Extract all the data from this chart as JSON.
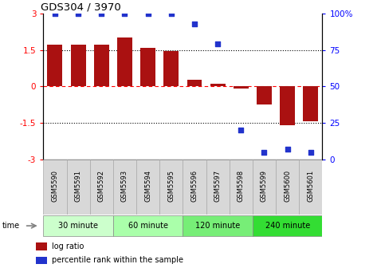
{
  "title": "GDS304 / 3970",
  "samples": [
    "GSM5590",
    "GSM5591",
    "GSM5592",
    "GSM5593",
    "GSM5594",
    "GSM5595",
    "GSM5596",
    "GSM5597",
    "GSM5598",
    "GSM5599",
    "GSM5600",
    "GSM5601"
  ],
  "log_ratio": [
    1.72,
    1.7,
    1.72,
    2.0,
    1.58,
    1.45,
    0.28,
    0.1,
    -0.1,
    -0.75,
    -1.58,
    -1.42
  ],
  "percentile": [
    100,
    100,
    100,
    100,
    100,
    100,
    93,
    79,
    20,
    5,
    7,
    5
  ],
  "bar_color": "#aa1111",
  "dot_color": "#2233cc",
  "groups": [
    {
      "label": "30 minute",
      "start": 0,
      "end": 3,
      "color": "#ccffcc"
    },
    {
      "label": "60 minute",
      "start": 3,
      "end": 6,
      "color": "#aaffaa"
    },
    {
      "label": "120 minute",
      "start": 6,
      "end": 9,
      "color": "#77ee77"
    },
    {
      "label": "240 minute",
      "start": 9,
      "end": 12,
      "color": "#33dd33"
    }
  ],
  "ylim": [
    -3,
    3
  ],
  "y2lim": [
    0,
    100
  ],
  "yticks": [
    -3,
    -1.5,
    0,
    1.5,
    3
  ],
  "ytick_labels": [
    "-3",
    "-1.5",
    "0",
    "1.5",
    "3"
  ],
  "y2ticks": [
    0,
    25,
    50,
    75,
    100
  ],
  "y2tick_labels": [
    "0",
    "25",
    "50",
    "75",
    "100%"
  ],
  "legend_items": [
    {
      "label": "log ratio",
      "color": "#aa1111"
    },
    {
      "label": "percentile rank within the sample",
      "color": "#2233cc"
    }
  ]
}
